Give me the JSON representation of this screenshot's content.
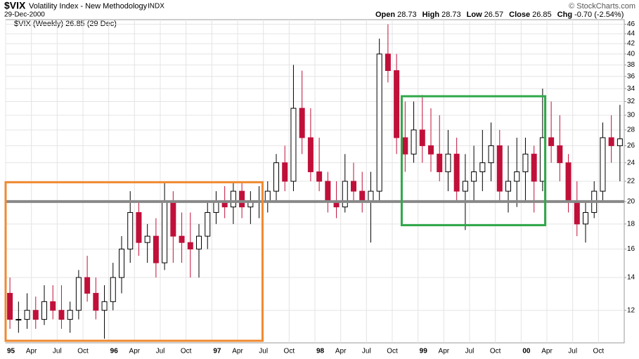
{
  "chart_data": {
    "type": "candlestick",
    "symbol": "$VIX",
    "title": "Volatility Index - New Methodology",
    "exchange": "INDX",
    "date": "29-Dec-2000",
    "credit": "© StockCharts.com",
    "quote": [
      {
        "label": "Open",
        "value": "28.73"
      },
      {
        "label": "High",
        "value": "28.73"
      },
      {
        "label": "Low",
        "value": "26.57"
      },
      {
        "label": "Close",
        "value": "26.85"
      },
      {
        "label": "Chg",
        "value": "-0.70 (-2.54%)"
      }
    ],
    "legend": "$VIX (Weekly) 26.85 (29 Dec)",
    "log_scale": true,
    "grid": true,
    "up_color": "#000000",
    "down_color": "#c0103a",
    "x": [
      "1995-01",
      "1995-02",
      "1995-03",
      "1995-04",
      "1995-05",
      "1995-06",
      "1995-07",
      "1995-08",
      "1995-09",
      "1995-10",
      "1995-11",
      "1995-12",
      "1996-01",
      "1996-02",
      "1996-03",
      "1996-04",
      "1996-05",
      "1996-06",
      "1996-07",
      "1996-08",
      "1996-09",
      "1996-10",
      "1996-11",
      "1996-12",
      "1997-01",
      "1997-02",
      "1997-03",
      "1997-04",
      "1997-05",
      "1997-06",
      "1997-07",
      "1997-08",
      "1997-09",
      "1997-10",
      "1997-11",
      "1997-12",
      "1998-01",
      "1998-02",
      "1998-03",
      "1998-04",
      "1998-05",
      "1998-06",
      "1998-07",
      "1998-08",
      "1998-09",
      "1998-10",
      "1998-11",
      "1998-12",
      "1999-01",
      "1999-02",
      "1999-03",
      "1999-04",
      "1999-05",
      "1999-06",
      "1999-07",
      "1999-08",
      "1999-09",
      "1999-10",
      "1999-11",
      "1999-12",
      "2000-01",
      "2000-02",
      "2000-03",
      "2000-04",
      "2000-05",
      "2000-06",
      "2000-07",
      "2000-08",
      "2000-09",
      "2000-10",
      "2000-11",
      "2000-12"
    ],
    "open": [
      13,
      11.5,
      11.5,
      12,
      11.5,
      12.5,
      12,
      11.5,
      12,
      14,
      13,
      12,
      12.5,
      14,
      16,
      19,
      16.5,
      17,
      15,
      20,
      17,
      16.5,
      16,
      17,
      19,
      20,
      19.5,
      21,
      19.5,
      20,
      20,
      21,
      24,
      22,
      31,
      27,
      23,
      22,
      20,
      19.5,
      22,
      21,
      20,
      21,
      40,
      37,
      27,
      25,
      28,
      26,
      25,
      23,
      25,
      21,
      22,
      23,
      24,
      26,
      21,
      22,
      23,
      25,
      22,
      27,
      26,
      24,
      20,
      18,
      19,
      21,
      27,
      26
    ],
    "high": [
      14,
      12.5,
      13,
      12.8,
      13.5,
      13.5,
      13.5,
      12.5,
      14.5,
      15.5,
      14,
      13.5,
      15,
      17,
      21,
      20,
      18,
      18.5,
      22,
      21,
      19,
      19,
      18,
      20,
      21,
      21.5,
      22,
      22,
      21,
      21.5,
      22,
      25,
      26,
      38,
      37,
      31,
      27,
      23,
      22,
      25,
      24,
      23,
      23,
      43,
      46,
      40,
      32,
      32,
      33,
      31,
      30,
      28,
      27,
      25,
      26,
      28,
      29,
      28,
      26,
      27,
      27,
      26,
      34,
      32,
      30,
      25,
      22,
      20,
      22,
      29,
      30,
      31.5
    ],
    "low": [
      11,
      10.8,
      11,
      11,
      11.2,
      11.5,
      11,
      10.8,
      11.5,
      12.5,
      11.5,
      10.5,
      12,
      13,
      15,
      15.5,
      15,
      14,
      14.5,
      15,
      15,
      14,
      14,
      16,
      18,
      18.5,
      18,
      18.5,
      18,
      18.5,
      19,
      20,
      21,
      21,
      25,
      22,
      21,
      19,
      18.5,
      19,
      20,
      19,
      16.5,
      20,
      35,
      25,
      23,
      24,
      24,
      23,
      22,
      21,
      20,
      17.5,
      20,
      21,
      22,
      20,
      19,
      19.5,
      20,
      19,
      21,
      24,
      22,
      19,
      17,
      16.5,
      18.5,
      20,
      24,
      22
    ],
    "close": [
      11.5,
      11.5,
      12,
      11.5,
      12.5,
      12,
      11.5,
      12,
      14,
      13,
      12,
      12.5,
      14,
      16,
      19,
      16.5,
      17,
      15,
      20,
      17,
      16.5,
      16,
      17,
      19,
      20,
      19.5,
      21,
      19.5,
      20,
      20,
      21,
      24,
      22,
      31,
      27,
      23,
      22,
      20,
      19.5,
      22,
      21,
      20,
      21,
      40,
      37,
      27,
      25,
      28,
      26,
      25,
      23,
      25,
      21,
      22,
      23,
      24,
      26,
      21,
      22,
      23,
      25,
      22,
      27,
      26,
      24,
      20,
      18,
      19,
      21,
      27,
      26,
      26.85
    ],
    "xlim": [
      0,
      72
    ],
    "xticks": [
      {
        "value": 0,
        "label": "95"
      },
      {
        "value": 3,
        "label": "Apr"
      },
      {
        "value": 6,
        "label": "Jul"
      },
      {
        "value": 9,
        "label": "Oct"
      },
      {
        "value": 12,
        "label": "96"
      },
      {
        "value": 15,
        "label": "Apr"
      },
      {
        "value": 18,
        "label": "Jul"
      },
      {
        "value": 21,
        "label": "Oct"
      },
      {
        "value": 24,
        "label": "97"
      },
      {
        "value": 27,
        "label": "Apr"
      },
      {
        "value": 30,
        "label": "Jul"
      },
      {
        "value": 33,
        "label": "Oct"
      },
      {
        "value": 36,
        "label": "98"
      },
      {
        "value": 39,
        "label": "Apr"
      },
      {
        "value": 42,
        "label": "Jul"
      },
      {
        "value": 45,
        "label": "Oct"
      },
      {
        "value": 48,
        "label": "99"
      },
      {
        "value": 51,
        "label": "Apr"
      },
      {
        "value": 54,
        "label": "Jul"
      },
      {
        "value": 57,
        "label": "Oct"
      },
      {
        "value": 60,
        "label": "00"
      },
      {
        "value": 63,
        "label": "Apr"
      },
      {
        "value": 66,
        "label": "Jul"
      },
      {
        "value": 69,
        "label": "Oct"
      }
    ],
    "ylim": [
      10.3,
      47
    ],
    "yticks": [
      12,
      14,
      16,
      18,
      20,
      22,
      24,
      26,
      28,
      30,
      32,
      34,
      36,
      38,
      40,
      42,
      44,
      46
    ],
    "hline": {
      "value": 20,
      "color": "#888888"
    },
    "boxes": [
      {
        "color": "#f08a32",
        "x": [
          0,
          29.9
        ],
        "y": [
          10.4,
          21.9
        ]
      },
      {
        "color": "#30a84a",
        "x": [
          46.1,
          62.8
        ],
        "y": [
          17.9,
          32.8
        ]
      }
    ]
  }
}
